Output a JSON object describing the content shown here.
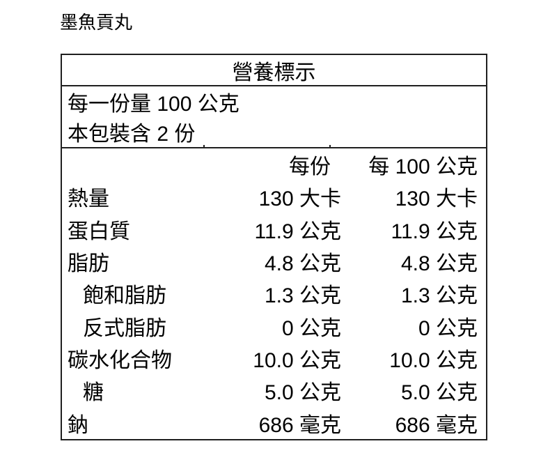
{
  "page": {
    "title": "墨魚貢丸",
    "background_color": "#ffffff",
    "text_color": "#000000",
    "border_color": "#1f1f1f"
  },
  "nutrition_table": {
    "header": "營養標示",
    "serving_info": {
      "serving_size": "每一份量 100 公克",
      "servings_per_package": "本包裝含 2 份"
    },
    "columns": [
      "",
      "每份",
      "每 100 公克"
    ],
    "rows": [
      {
        "label": "熱量",
        "indent": false,
        "per_serving": "130 大卡",
        "per_100g": "130 大卡"
      },
      {
        "label": "蛋白質",
        "indent": false,
        "per_serving": "11.9 公克",
        "per_100g": "11.9 公克"
      },
      {
        "label": "脂肪",
        "indent": false,
        "per_serving": "4.8 公克",
        "per_100g": "4.8 公克"
      },
      {
        "label": "飽和脂肪",
        "indent": true,
        "per_serving": "1.3 公克",
        "per_100g": "1.3 公克"
      },
      {
        "label": "反式脂肪",
        "indent": true,
        "per_serving": "0 公克",
        "per_100g": "0 公克"
      },
      {
        "label": "碳水化合物",
        "indent": false,
        "per_serving": "10.0 公克",
        "per_100g": "10.0 公克"
      },
      {
        "label": "糖",
        "indent": true,
        "per_serving": "5.0 公克",
        "per_100g": "5.0 公克"
      },
      {
        "label": "鈉",
        "indent": false,
        "per_serving": "686 毫克",
        "per_100g": "686 毫克"
      }
    ]
  }
}
